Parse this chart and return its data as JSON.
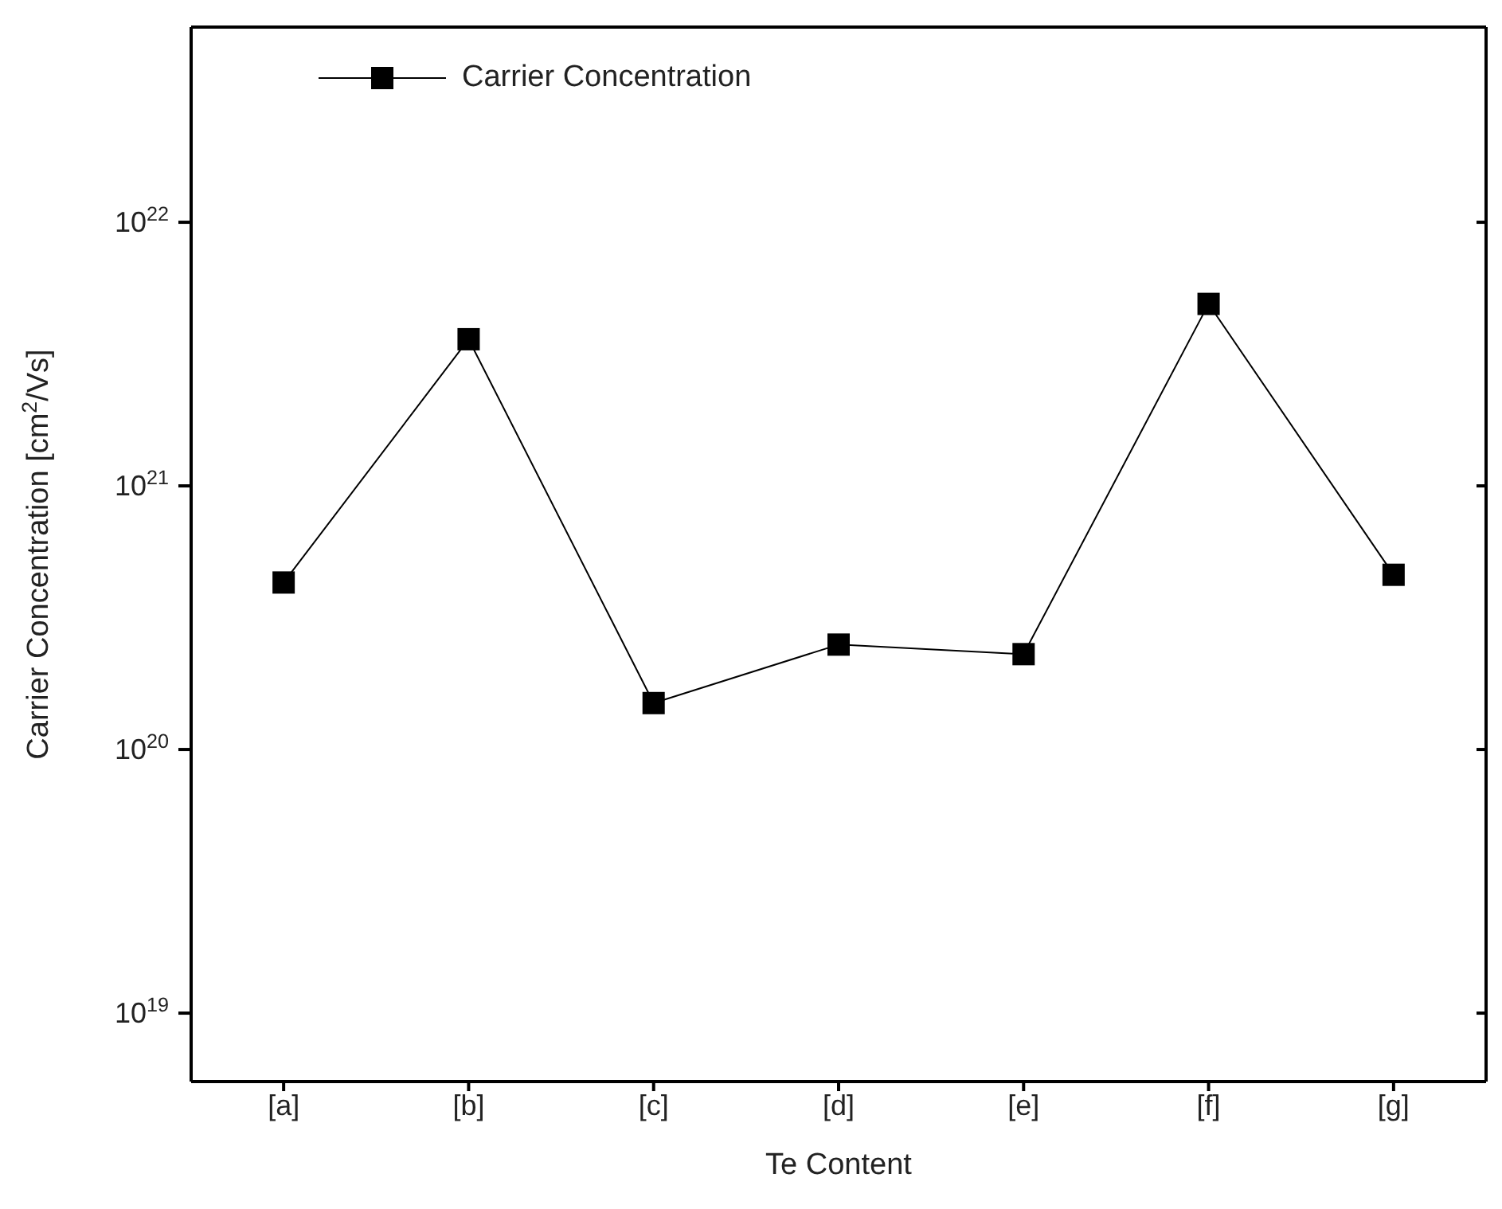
{
  "chart_data": {
    "type": "line",
    "xlabel": "Te Content",
    "ylabel": "Carrier Concentration [cm$^{2}$/Vs]",
    "categories": [
      "[a]",
      "[b]",
      "[c]",
      "[d]",
      "[e]",
      "[f]",
      "[g]"
    ],
    "series": [
      {
        "name": "Carrier Concentration",
        "color": "#000000",
        "values": [
          4.3e+20,
          3.6e+21,
          1.5e+20,
          2.5e+20,
          2.3e+20,
          4.9e+21,
          4.6e+20
        ]
      }
    ],
    "log": true,
    "ylim": [
      5.5e+18,
      5.5e+22
    ],
    "yticks": [
      {
        "value": 1e+19,
        "label": "10$^{19}$"
      },
      {
        "value": 1e+20,
        "label": "10$^{20}$"
      },
      {
        "value": 1e+21,
        "label": "10$^{21}$"
      },
      {
        "value": 1e+22,
        "label": "10$^{22}$"
      }
    ],
    "marker": "square",
    "line_style": "solid",
    "legend": "top left",
    "grid": false
  }
}
